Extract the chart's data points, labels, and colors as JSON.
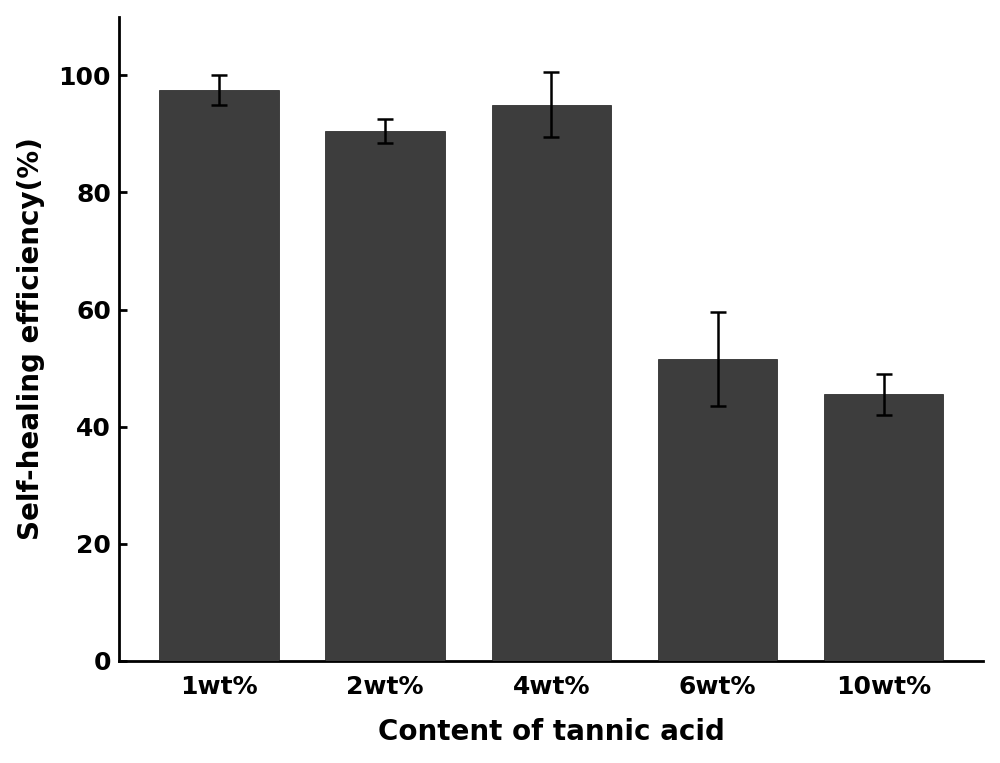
{
  "categories": [
    "1wt%",
    "2wt%",
    "4wt%",
    "6wt%",
    "10wt%"
  ],
  "values": [
    97.5,
    90.5,
    95.0,
    51.5,
    45.5
  ],
  "errors": [
    2.5,
    2.0,
    5.5,
    8.0,
    3.5
  ],
  "bar_color": "#3d3d3d",
  "bar_width": 0.72,
  "xlabel": "Content of tannic acid",
  "ylabel": "Self-healing efficiency(%)",
  "ylim": [
    0,
    110
  ],
  "yticks": [
    0,
    20,
    40,
    60,
    80,
    100
  ],
  "xlabel_fontsize": 20,
  "ylabel_fontsize": 20,
  "tick_fontsize": 18,
  "background_color": "#ffffff",
  "edge_color": "#1a1a1a",
  "error_color": "#000000",
  "capsize": 6,
  "error_linewidth": 1.8
}
